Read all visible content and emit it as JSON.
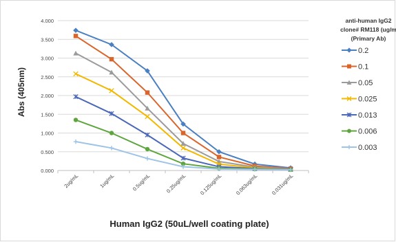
{
  "chart_data": {
    "type": "line",
    "title": "",
    "xlabel": "Human IgG2 (50uL/well coating plate)",
    "ylabel": "Abs (405nm)",
    "ylim": [
      0,
      4
    ],
    "yticks": [
      "0.000",
      "0.500",
      "1.000",
      "1.500",
      "2.000",
      "2.500",
      "3.000",
      "3.500",
      "4.000"
    ],
    "ytick_values": [
      0,
      0.5,
      1,
      1.5,
      2,
      2.5,
      3,
      3.5,
      4
    ],
    "categories": [
      "2ug/mL",
      "1ug/mL",
      "0.5ug/mL",
      "0.25ug/mL",
      "0.125ug/mL",
      "0.063ug/mL",
      "0.031ug/mL"
    ],
    "grid": true,
    "legend_position": "right",
    "legend_title": [
      "anti-human IgG2",
      "clone# RM118 (ug/m",
      "(Primary Ab)"
    ],
    "series": [
      {
        "name": "0.2",
        "color": "#4a7fc1",
        "marker": "diamond",
        "values": [
          3.74,
          3.36,
          2.66,
          1.24,
          0.5,
          0.17,
          0.07
        ]
      },
      {
        "name": "0.1",
        "color": "#d9652b",
        "marker": "square",
        "values": [
          3.59,
          2.97,
          2.08,
          1.0,
          0.36,
          0.12,
          0.05
        ]
      },
      {
        "name": "0.05",
        "color": "#9b9b9b",
        "marker": "triangle",
        "values": [
          3.13,
          2.62,
          1.66,
          0.72,
          0.24,
          0.09,
          0.04
        ]
      },
      {
        "name": "0.025",
        "color": "#f2b800",
        "marker": "x",
        "values": [
          2.58,
          2.13,
          1.44,
          0.6,
          0.17,
          0.07,
          0.03
        ]
      },
      {
        "name": "0.013",
        "color": "#4a67b8",
        "marker": "star",
        "values": [
          1.97,
          1.52,
          0.95,
          0.33,
          0.1,
          0.05,
          0.03
        ]
      },
      {
        "name": "0.006",
        "color": "#5fa53d",
        "marker": "circle",
        "values": [
          1.35,
          1.0,
          0.57,
          0.18,
          0.06,
          0.04,
          0.02
        ]
      },
      {
        "name": "0.003",
        "color": "#9dc3e6",
        "marker": "plus",
        "values": [
          0.77,
          0.6,
          0.32,
          0.1,
          0.04,
          0.03,
          0.02
        ]
      }
    ]
  }
}
